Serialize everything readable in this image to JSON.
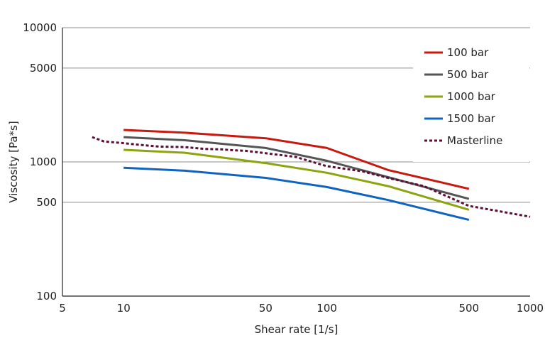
{
  "chart_data": {
    "type": "line",
    "xlabel": "Shear rate [1/s]",
    "ylabel": "Viscosity [Pa*s]",
    "xscale": "log",
    "yscale": "log",
    "xlim": [
      5,
      1000
    ],
    "ylim": [
      100,
      10000
    ],
    "xticks": [
      5,
      10,
      50,
      100,
      500,
      1000
    ],
    "yticks": [
      100,
      500,
      1000,
      5000,
      10000
    ],
    "ygrid": true,
    "legend_position": "top-right",
    "series": [
      {
        "name": "100 bar",
        "color": "#c8190f",
        "style": "solid",
        "x": [
          10,
          20,
          50,
          100,
          200,
          500
        ],
        "y": [
          1730,
          1650,
          1500,
          1270,
          870,
          630
        ]
      },
      {
        "name": "500 bar",
        "color": "#555555",
        "style": "solid",
        "x": [
          10,
          20,
          50,
          100,
          200,
          500
        ],
        "y": [
          1530,
          1450,
          1270,
          1020,
          770,
          530
        ]
      },
      {
        "name": "1000 bar",
        "color": "#8da30f",
        "style": "solid",
        "x": [
          10,
          20,
          50,
          100,
          200,
          500
        ],
        "y": [
          1230,
          1170,
          980,
          830,
          660,
          440
        ]
      },
      {
        "name": "1500 bar",
        "color": "#1064c0",
        "style": "solid",
        "x": [
          10,
          20,
          50,
          100,
          200,
          500
        ],
        "y": [
          905,
          860,
          760,
          650,
          520,
          370
        ]
      },
      {
        "name": "Masterline",
        "color": "#5c0f35",
        "style": "dashed",
        "x": [
          7,
          8,
          10,
          12,
          15,
          20,
          25,
          30,
          35,
          40,
          50,
          70,
          100,
          150,
          200,
          300,
          500,
          700,
          1000
        ],
        "y": [
          1530,
          1420,
          1380,
          1340,
          1300,
          1290,
          1250,
          1240,
          1220,
          1210,
          1160,
          1090,
          930,
          850,
          760,
          660,
          470,
          430,
          390
        ]
      }
    ]
  }
}
